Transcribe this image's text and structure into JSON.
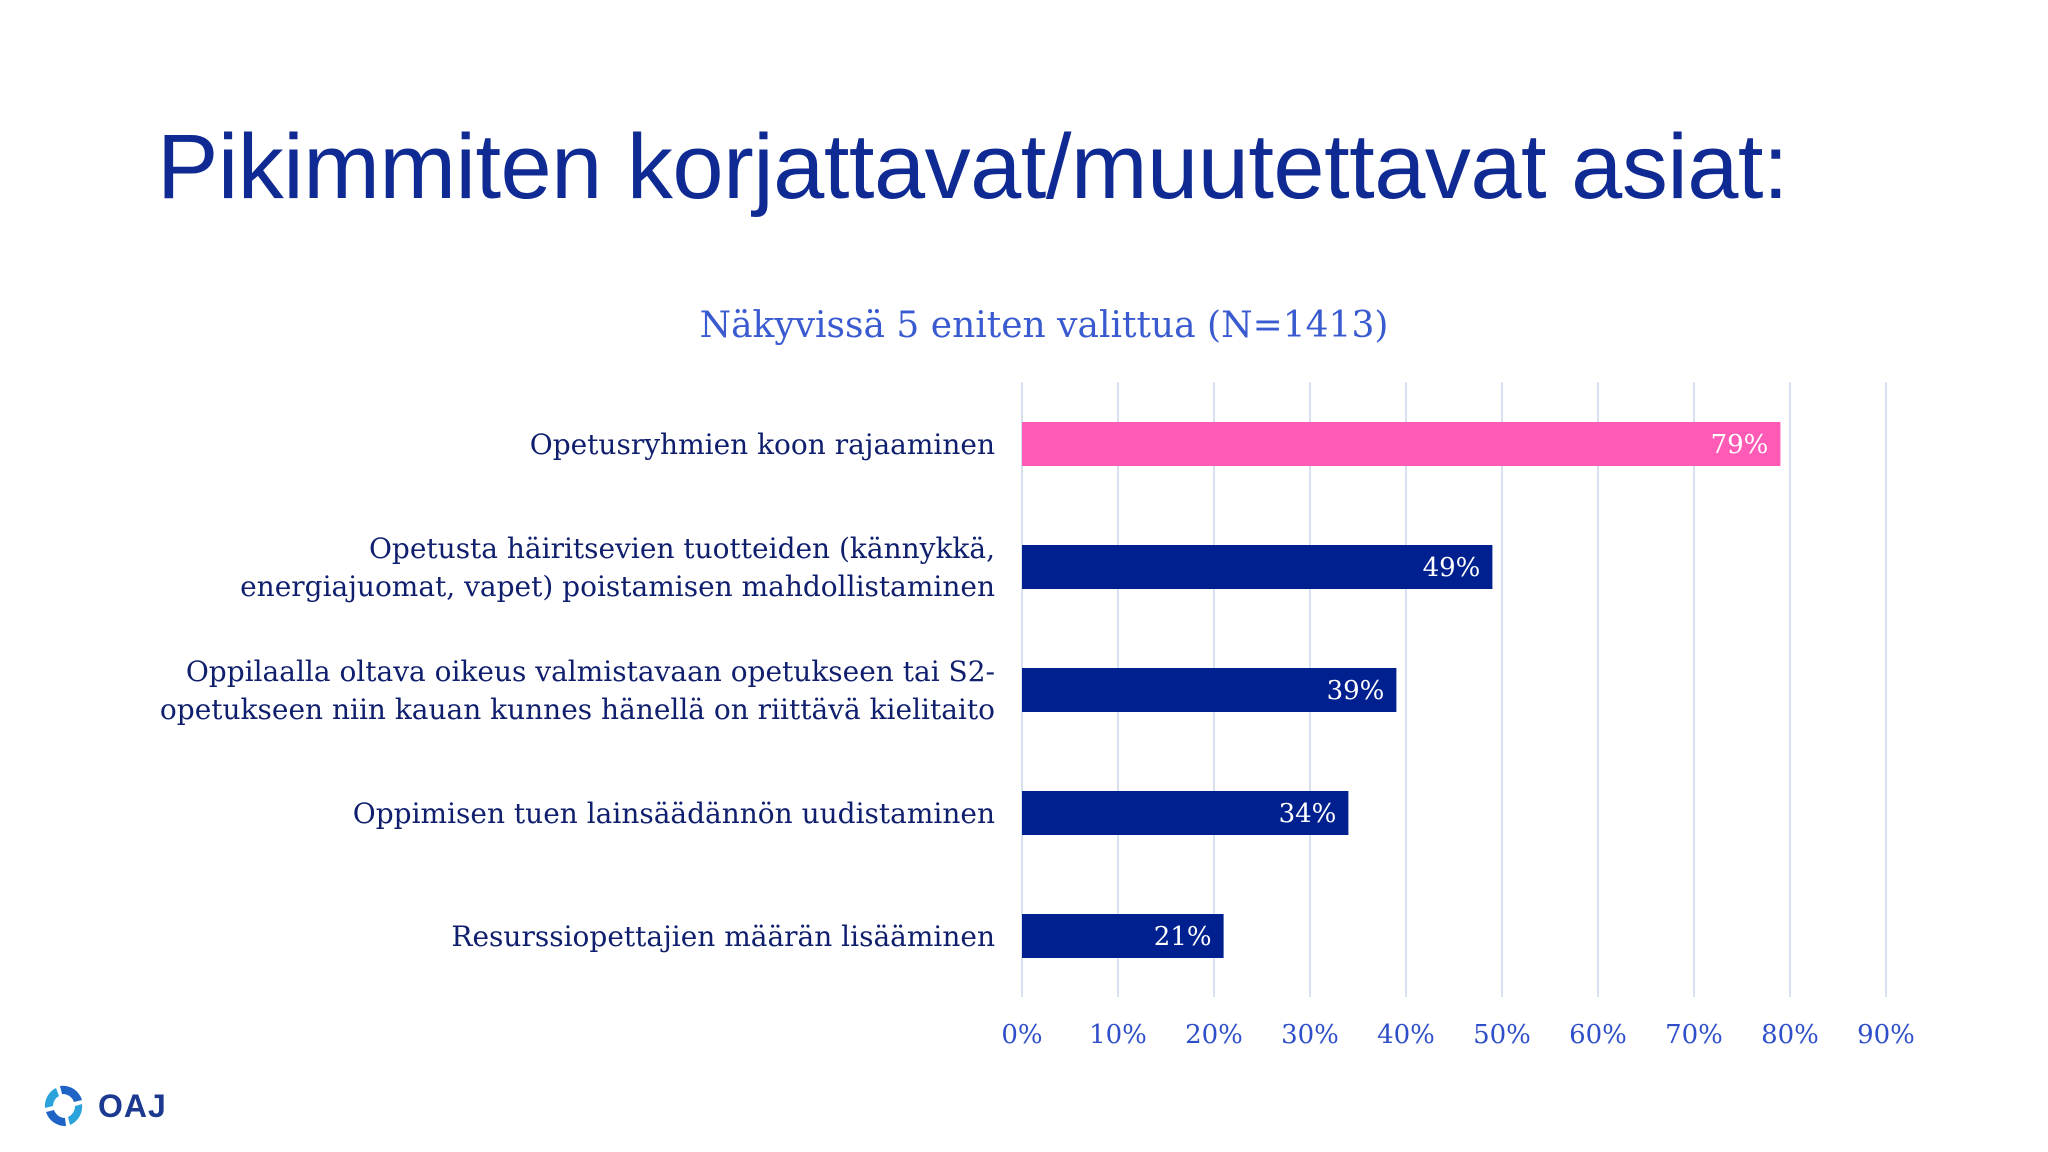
{
  "slide": {
    "title": "Pikimmiten korjattavat/muutettavat asiat:",
    "logo_text": "OAJ"
  },
  "chart_data": {
    "type": "bar",
    "orientation": "horizontal",
    "title": "Näkyvissä 5 eniten valittua (N=1413)",
    "categories": [
      "Opetusryhmien koon rajaaminen",
      "Opetusta häiritsevien tuotteiden (kännykkä, energiajuomat, vapet) poistamisen mahdollistaminen",
      "Oppilaalla oltava oikeus valmistavaan opetukseen tai S2-opetukseen niin kauan kunnes hänellä on riittävä kielitaito",
      "Oppimisen tuen lainsäädännön uudistaminen",
      "Resurssiopettajien määrän lisääminen"
    ],
    "category_lines": [
      [
        "Opetusryhmien koon rajaaminen"
      ],
      [
        "Opetusta häiritsevien tuotteiden (kännykkä,",
        "energiajuomat, vapet) poistamisen mahdollistaminen"
      ],
      [
        "Oppilaalla oltava oikeus valmistavaan opetukseen tai S2-",
        "opetukseen niin kauan kunnes hänellä on riittävä kielitaito"
      ],
      [
        "Oppimisen tuen lainsäädännön uudistaminen"
      ],
      [
        "Resurssiopettajien määrän lisääminen"
      ]
    ],
    "values": [
      79,
      49,
      39,
      34,
      21
    ],
    "value_labels": [
      "79%",
      "49%",
      "39%",
      "34%",
      "21%"
    ],
    "bar_colors": [
      "#ff5ab6",
      "#00208f",
      "#00208f",
      "#00208f",
      "#00208f"
    ],
    "xlim": [
      0,
      90
    ],
    "xticks": [
      0,
      10,
      20,
      30,
      40,
      50,
      60,
      70,
      80,
      90
    ],
    "xtick_labels": [
      "0%",
      "10%",
      "20%",
      "30%",
      "40%",
      "50%",
      "60%",
      "70%",
      "80%",
      "90%"
    ],
    "grid": true,
    "gridline_color": "#c9d7ee"
  }
}
